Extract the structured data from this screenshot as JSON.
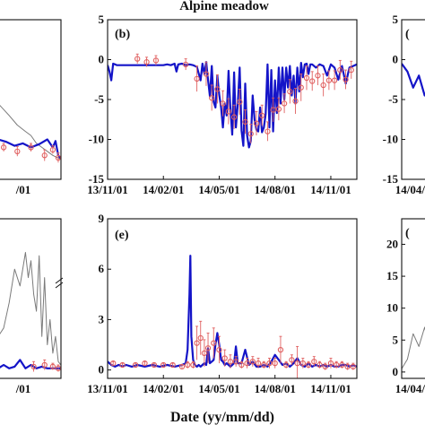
{
  "figure": {
    "title": "Alpine meadow",
    "xlabel": "Date (yy/mm/dd)"
  },
  "colors": {
    "model": "#1414c8",
    "observed": "#e06060",
    "gray_series": "#7a7a7a",
    "axis": "#111111"
  },
  "chart_data": [
    {
      "id": "left-top",
      "type": "line",
      "panel_label": "",
      "x_tick_labels": [
        "/01"
      ],
      "series": [
        {
          "role": "gray",
          "x": [
            0,
            0.2,
            0.35,
            0.5,
            0.6,
            0.7,
            0.8,
            0.9,
            1.0,
            1.15
          ],
          "y": [
            -5.5,
            -7.0,
            -8.2,
            -9.0,
            -9.5,
            -10.5,
            -11.0,
            -11.5,
            -12.0,
            -12.5
          ]
        },
        {
          "role": "model",
          "x": [
            0,
            0.15,
            0.3,
            0.45,
            0.6,
            0.75,
            0.9,
            1.0,
            1.05,
            1.1,
            1.15
          ],
          "y": [
            -10.0,
            -10.3,
            -10.8,
            -10.5,
            -11.0,
            -10.6,
            -10.0,
            -11.0,
            -10.2,
            -12.0,
            -12.4
          ]
        },
        {
          "role": "observed",
          "x": [
            0.1,
            0.35,
            0.6,
            0.85,
            1.0,
            1.1
          ],
          "y": [
            -11.0,
            -11.5,
            -11.0,
            -12.0,
            -11.3,
            -12.3
          ],
          "err": [
            0.5,
            0.6,
            0.5,
            0.7,
            0.5,
            0.6
          ]
        }
      ]
    },
    {
      "id": "b",
      "type": "line",
      "panel_label": "(b)",
      "x_tick_labels": [
        "13/11/01",
        "14/02/01",
        "14/05/01",
        "14/08/01",
        "14/11/01"
      ],
      "x_ticks": [
        0,
        3,
        6,
        9,
        12
      ],
      "xlim": [
        0,
        13.4
      ],
      "y_ticks": [
        5,
        0,
        -5,
        -10,
        -15
      ],
      "y_tick_labels": [
        "5",
        "0",
        "-5",
        "-10",
        "-15"
      ],
      "ylim": [
        -15,
        5
      ],
      "series": [
        {
          "role": "model",
          "x": [
            0,
            0.1,
            0.2,
            0.3,
            0.4,
            0.5,
            0.6,
            0.8,
            1.0,
            1.5,
            2.0,
            2.6,
            3.0,
            3.2,
            3.4,
            3.6,
            3.7,
            3.8,
            4.0,
            4.2,
            4.4,
            4.6,
            4.8,
            5.0,
            5.1,
            5.2,
            5.3,
            5.4,
            5.5,
            5.6,
            5.7,
            5.8,
            5.9,
            6.0,
            6.1,
            6.2,
            6.3,
            6.4,
            6.5,
            6.6,
            6.7,
            6.8,
            6.9,
            7.0,
            7.1,
            7.2,
            7.3,
            7.4,
            7.5,
            7.6,
            7.7,
            7.8,
            7.9,
            8.0,
            8.1,
            8.2,
            8.3,
            8.4,
            8.5,
            8.6,
            8.7,
            8.8,
            8.9,
            9.0,
            9.1,
            9.2,
            9.3,
            9.4,
            9.5,
            9.6,
            9.7,
            9.8,
            9.9,
            10.0,
            10.1,
            10.2,
            10.3,
            10.4,
            10.5,
            10.6,
            10.7,
            10.8,
            10.9,
            11.0,
            11.2,
            11.4,
            11.6,
            11.8,
            12.0,
            12.2,
            12.4,
            12.6,
            12.8,
            13.0,
            13.2,
            13.4
          ],
          "y": [
            -0.7,
            -1.5,
            -2.6,
            -0.5,
            -0.6,
            -0.7,
            -0.7,
            -0.7,
            -0.7,
            -0.7,
            -0.7,
            -0.7,
            -0.7,
            -0.6,
            -0.7,
            -0.5,
            -1.5,
            -0.6,
            -0.5,
            -0.7,
            -0.6,
            -0.7,
            -0.9,
            -2.6,
            -0.5,
            -1.8,
            -0.3,
            -2.5,
            -4.6,
            -0.8,
            -5.3,
            -6.0,
            -2.0,
            -4.4,
            -6.0,
            -8.5,
            -5.5,
            -7.0,
            -1.4,
            -6.0,
            -9.4,
            -1.6,
            -8.5,
            -5.6,
            -1.0,
            -8.9,
            -10.8,
            -3.0,
            -9.5,
            -11.0,
            -10.2,
            -4.5,
            -7.5,
            -8.8,
            -9.0,
            -6.0,
            -9.1,
            -8.5,
            -6.8,
            -0.6,
            -8.5,
            -1.3,
            -9.0,
            -2.6,
            -6.7,
            -1.0,
            -5.5,
            -1.0,
            -5.0,
            -1.0,
            -3.5,
            -0.8,
            -4.5,
            -2.0,
            -5.5,
            -1.0,
            -4.0,
            -0.4,
            -2.2,
            -0.6,
            -0.5,
            -1.8,
            -0.6,
            -0.6,
            -1.0,
            -0.6,
            -0.8,
            -2.0,
            -0.6,
            -1.0,
            -2.5,
            -0.8,
            -3.0,
            -1.0,
            -0.8,
            -0.6
          ]
        },
        {
          "role": "observed",
          "x": [
            1.6,
            2.1,
            2.6,
            4.2,
            4.8,
            5.3,
            5.6,
            5.9,
            6.2,
            6.5,
            6.8,
            7.1,
            7.4,
            7.7,
            8.0,
            8.3,
            8.6,
            8.9,
            9.2,
            9.5,
            9.8,
            10.1,
            10.4,
            10.7,
            11.0,
            11.3,
            11.6,
            11.9,
            12.2,
            12.5,
            12.8,
            13.1
          ],
          "y": [
            0.1,
            -0.3,
            -0.1,
            -0.6,
            -2.4,
            -1.8,
            -4.8,
            -3.7,
            -5.5,
            -6.5,
            -7.2,
            -5.3,
            -7.8,
            -9.3,
            -8.0,
            -7.0,
            -9.0,
            -6.3,
            -6.2,
            -5.5,
            -4.0,
            -5.2,
            -3.5,
            -2.3,
            -2.7,
            -2.0,
            -3.2,
            -2.6,
            -2.6,
            -1.3,
            -2.5,
            -1.3
          ],
          "err": [
            0.6,
            0.6,
            0.6,
            0.7,
            1.6,
            1.5,
            1.6,
            1.8,
            1.6,
            1.6,
            1.5,
            1.6,
            1.5,
            1.2,
            1.5,
            1.3,
            1.2,
            1.5,
            1.4,
            1.2,
            1.5,
            1.6,
            1.7,
            1.5,
            1.2,
            1.2,
            1.4,
            1.2,
            1.2,
            1.2,
            1.2,
            1.1
          ]
        }
      ]
    },
    {
      "id": "right-top",
      "type": "line",
      "panel_label": "(",
      "x_tick_labels": [
        "14/04/"
      ],
      "y_ticks": [
        5,
        0,
        -5,
        -10,
        -15
      ],
      "y_tick_labels": [
        "5",
        "0",
        "-5",
        "-10",
        "-15"
      ],
      "ylim": [
        -15,
        5
      ],
      "series": [
        {
          "role": "model",
          "x": [
            0,
            0.1,
            0.2,
            0.3,
            0.4,
            0.5
          ],
          "y": [
            -0.5,
            -1.5,
            -3.5,
            -2.0,
            -4.5,
            -3.0
          ]
        }
      ]
    },
    {
      "id": "left-bottom",
      "type": "line",
      "panel_label": "",
      "x_tick_labels": [
        "/01"
      ],
      "series": [
        {
          "role": "gray",
          "x": [
            0,
            0.1,
            0.2,
            0.3,
            0.4,
            0.5,
            0.55,
            0.6,
            0.65,
            0.7,
            0.75,
            0.8,
            0.85,
            0.9,
            0.95,
            1.0,
            1.05,
            1.1,
            1.15
          ],
          "y": [
            2.0,
            2.5,
            4.0,
            6.0,
            5.0,
            7.0,
            5.5,
            6.5,
            4.5,
            3.5,
            6.8,
            2.0,
            5.5,
            1.5,
            3.0,
            1.0,
            2.0,
            0.5,
            0.3
          ]
        },
        {
          "role": "model",
          "x": [
            0,
            0.1,
            0.2,
            0.3,
            0.4,
            0.5,
            0.6,
            0.7,
            0.8,
            0.9,
            1.0,
            1.1,
            1.15
          ],
          "y": [
            0.1,
            0.3,
            0.1,
            0.2,
            0.6,
            0.1,
            0.3,
            0.1,
            0.2,
            0.1,
            0.1,
            0.1,
            0.1
          ]
        },
        {
          "role": "observed",
          "x": [
            0.65,
            0.85,
            1.0,
            1.1
          ],
          "y": [
            0.2,
            0.3,
            0.2,
            0.1
          ],
          "err": [
            0.3,
            0.3,
            0.2,
            0.2
          ]
        }
      ]
    },
    {
      "id": "e",
      "type": "line",
      "panel_label": "(e)",
      "x_tick_labels": [
        "13/11/01",
        "14/02/01",
        "14/05/01",
        "14/08/01",
        "14/11/01"
      ],
      "x_ticks": [
        0,
        3,
        6,
        9,
        12
      ],
      "xlim": [
        0,
        13.4
      ],
      "y_ticks": [
        0,
        3,
        6,
        9
      ],
      "y_tick_labels": [
        "0",
        "3",
        "6",
        "9"
      ],
      "ylim": [
        -0.5,
        9
      ],
      "series": [
        {
          "role": "model",
          "x": [
            0,
            0.2,
            0.4,
            0.6,
            0.8,
            1.0,
            1.3,
            1.6,
            2.0,
            2.4,
            2.8,
            3.2,
            3.6,
            4.0,
            4.2,
            4.3,
            4.4,
            4.45,
            4.5,
            4.6,
            4.7,
            4.8,
            4.9,
            5.0,
            5.1,
            5.2,
            5.3,
            5.4,
            5.5,
            5.6,
            5.7,
            5.8,
            5.9,
            6.0,
            6.1,
            6.2,
            6.3,
            6.4,
            6.5,
            6.6,
            6.7,
            6.8,
            6.9,
            7.0,
            7.2,
            7.4,
            7.6,
            7.8,
            8.0,
            8.2,
            8.4,
            8.6,
            8.8,
            9.0,
            9.2,
            9.4,
            9.6,
            9.8,
            10.0,
            10.2,
            10.4,
            10.6,
            10.8,
            11.0,
            11.2,
            11.4,
            11.6,
            11.8,
            12.0,
            12.2,
            12.4,
            12.6,
            12.8,
            13.0,
            13.2,
            13.4
          ],
          "y": [
            0.5,
            0.3,
            0.2,
            0.3,
            0.2,
            0.3,
            0.2,
            0.3,
            0.2,
            0.3,
            0.2,
            0.3,
            0.2,
            0.3,
            0.4,
            1.2,
            4.5,
            6.8,
            2.0,
            0.6,
            0.3,
            0.2,
            0.3,
            0.2,
            0.3,
            0.4,
            0.3,
            1.3,
            0.4,
            0.5,
            0.6,
            1.5,
            2.2,
            1.5,
            0.6,
            0.5,
            0.3,
            0.4,
            0.3,
            0.2,
            0.3,
            0.4,
            1.4,
            0.4,
            0.4,
            1.2,
            0.3,
            0.5,
            0.2,
            0.2,
            0.3,
            0.2,
            0.5,
            0.9,
            0.6,
            0.3,
            0.4,
            0.2,
            0.4,
            0.7,
            0.3,
            0.2,
            0.4,
            0.2,
            0.3,
            0.2,
            0.3,
            0.2,
            0.3,
            0.2,
            0.2,
            0.3,
            0.3,
            0.2,
            0.3,
            0.2
          ]
        },
        {
          "role": "observed",
          "x": [
            0.3,
            0.8,
            1.5,
            2.0,
            2.5,
            3.0,
            3.5,
            4.0,
            4.3,
            4.6,
            4.8,
            5.0,
            5.2,
            5.4,
            5.7,
            6.0,
            6.3,
            6.6,
            6.9,
            7.2,
            7.5,
            7.8,
            8.1,
            8.4,
            8.7,
            9.0,
            9.3,
            9.6,
            9.9,
            10.2,
            10.5,
            10.8,
            11.1,
            11.4,
            11.7,
            12.0,
            12.3,
            12.6,
            12.9,
            13.2
          ],
          "y": [
            0.4,
            0.3,
            0.3,
            0.4,
            0.3,
            0.3,
            0.3,
            0.2,
            0.3,
            0.3,
            1.6,
            1.9,
            1.0,
            1.3,
            1.6,
            1.2,
            0.7,
            0.5,
            0.5,
            0.3,
            0.4,
            0.5,
            0.4,
            0.3,
            0.4,
            0.4,
            1.2,
            0.3,
            0.6,
            0.4,
            0.4,
            0.3,
            0.5,
            0.3,
            0.2,
            0.4,
            0.3,
            0.3,
            0.2,
            0.2
          ],
          "err": [
            0.1,
            0.1,
            0.1,
            0.1,
            0.1,
            0.1,
            0.1,
            0.1,
            0.2,
            0.2,
            1.0,
            1.0,
            0.8,
            0.9,
            0.9,
            0.8,
            0.5,
            0.4,
            0.3,
            0.2,
            0.3,
            0.3,
            0.3,
            0.2,
            0.3,
            0.3,
            0.8,
            0.2,
            0.3,
            1.0,
            0.3,
            0.2,
            0.3,
            0.2,
            0.2,
            0.3,
            0.2,
            0.2,
            0.2,
            0.2
          ]
        }
      ]
    },
    {
      "id": "right-bottom",
      "type": "line",
      "panel_label": "(",
      "x_tick_labels": [
        "14/04/"
      ],
      "y_ticks": [
        0,
        5,
        10,
        15,
        20
      ],
      "y_tick_labels": [
        "0",
        "5",
        "10",
        "15",
        "20"
      ],
      "ylim": [
        -1,
        24
      ],
      "series": [
        {
          "role": "gray",
          "x": [
            0,
            0.1,
            0.2,
            0.3,
            0.4,
            0.5
          ],
          "y": [
            0.5,
            2.0,
            6.0,
            4.0,
            7.0,
            3.0
          ]
        }
      ]
    }
  ]
}
